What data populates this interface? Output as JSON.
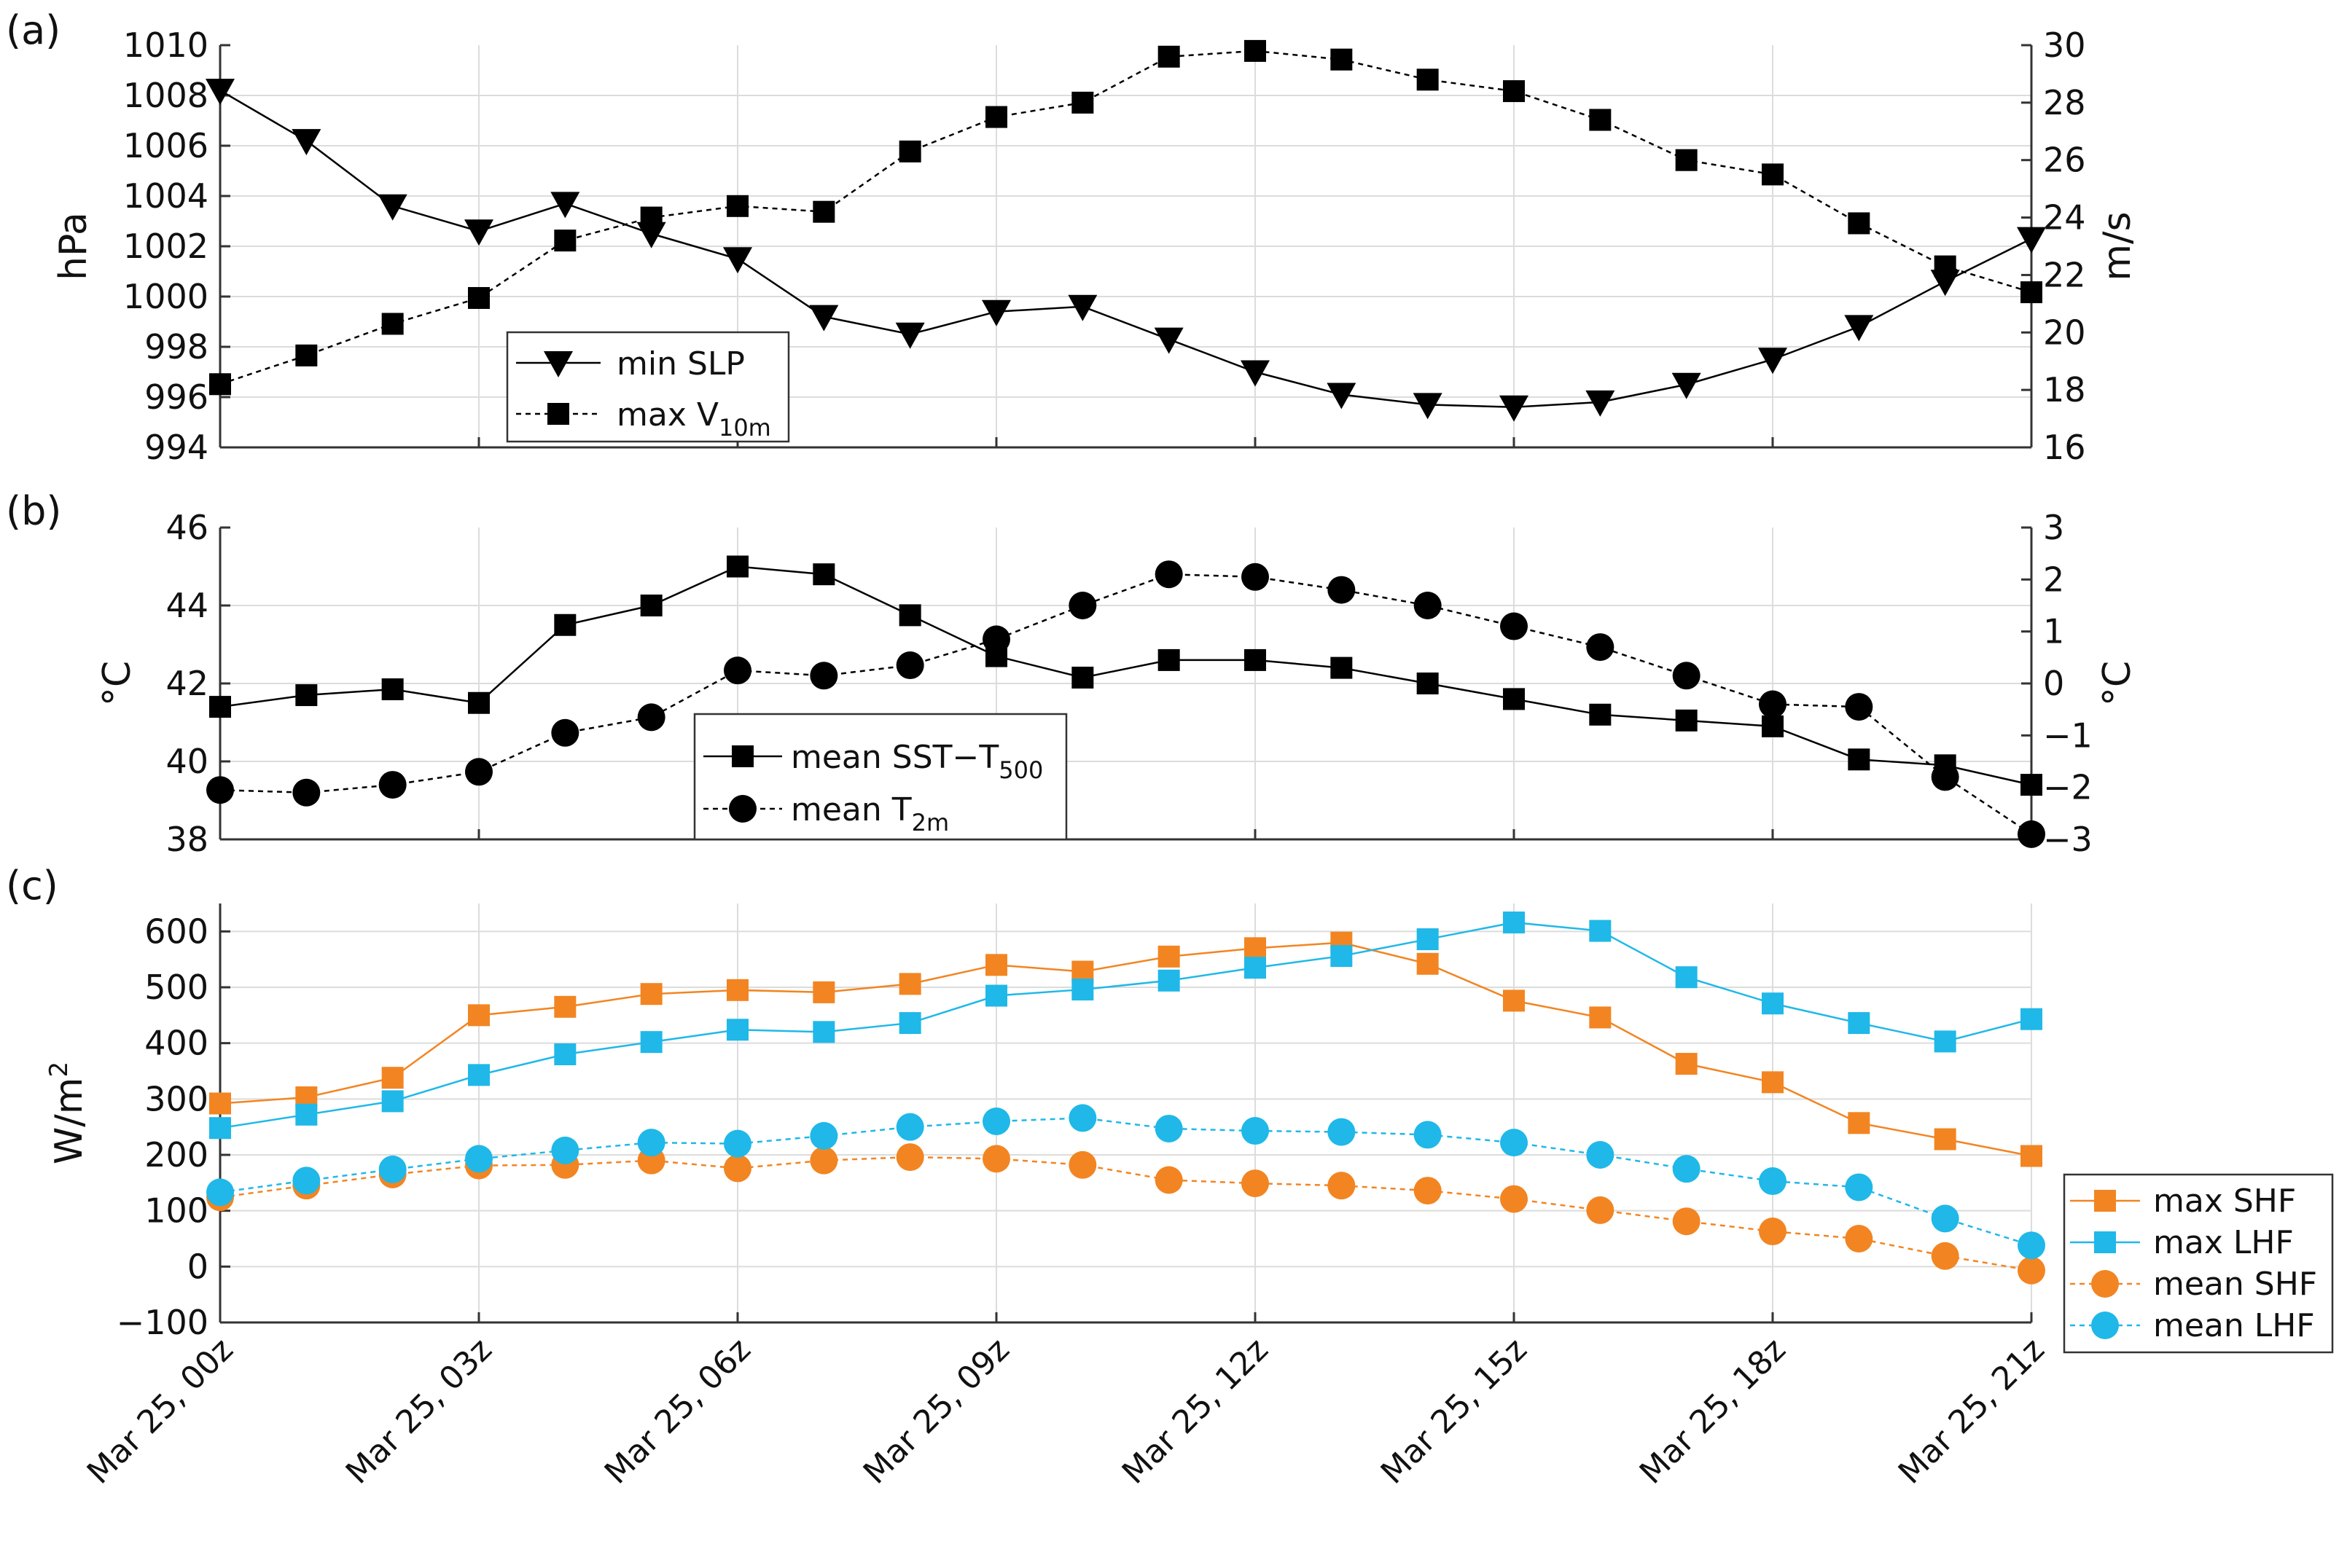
{
  "chart_data": [
    {
      "panel_label": "(a)",
      "type": "line",
      "x": [
        "Mar 25, 00z",
        "Mar 25, 01z",
        "Mar 25, 02z",
        "Mar 25, 03z",
        "Mar 25, 04z",
        "Mar 25, 05z",
        "Mar 25, 06z",
        "Mar 25, 07z",
        "Mar 25, 08z",
        "Mar 25, 09z",
        "Mar 25, 10z",
        "Mar 25, 11z",
        "Mar 25, 12z",
        "Mar 25, 13z",
        "Mar 25, 14z",
        "Mar 25, 15z",
        "Mar 25, 16z",
        "Mar 25, 17z",
        "Mar 25, 18z",
        "Mar 25, 19z",
        "Mar 25, 20z",
        "Mar 25, 21z"
      ],
      "left_axis": {
        "label": "hPa",
        "ylim": [
          994,
          1010
        ],
        "ticks": [
          "994",
          "996",
          "998",
          "1000",
          "1002",
          "1004",
          "1006",
          "1008",
          "1010"
        ]
      },
      "right_axis": {
        "label": "m/s",
        "ylim": [
          16,
          30
        ],
        "ticks": [
          "16",
          "18",
          "20",
          "22",
          "24",
          "26",
          "28",
          "30"
        ]
      },
      "series": [
        {
          "name": "min SLP",
          "axis": "left",
          "marker": "triangle-down",
          "style": "solid",
          "color": "#000000",
          "values": [
            1008.2,
            1006.2,
            1003.6,
            1002.6,
            1003.7,
            1002.5,
            1001.5,
            999.2,
            998.5,
            999.4,
            999.6,
            998.3,
            997.0,
            996.1,
            995.7,
            995.6,
            995.8,
            996.5,
            997.5,
            998.8,
            1000.6,
            1002.3
          ]
        },
        {
          "name": "max V",
          "name_sub": "10m",
          "axis": "right",
          "marker": "square",
          "style": "dashed",
          "color": "#000000",
          "values": [
            18.2,
            19.2,
            20.3,
            21.2,
            23.2,
            24.0,
            24.4,
            24.2,
            26.3,
            27.5,
            28.0,
            29.6,
            29.8,
            29.5,
            28.8,
            28.4,
            27.4,
            26.0,
            25.5,
            23.8,
            22.3,
            21.4
          ]
        }
      ]
    },
    {
      "panel_label": "(b)",
      "type": "line",
      "x": [
        "Mar 25, 00z",
        "Mar 25, 01z",
        "Mar 25, 02z",
        "Mar 25, 03z",
        "Mar 25, 04z",
        "Mar 25, 05z",
        "Mar 25, 06z",
        "Mar 25, 07z",
        "Mar 25, 08z",
        "Mar 25, 09z",
        "Mar 25, 10z",
        "Mar 25, 11z",
        "Mar 25, 12z",
        "Mar 25, 13z",
        "Mar 25, 14z",
        "Mar 25, 15z",
        "Mar 25, 16z",
        "Mar 25, 17z",
        "Mar 25, 18z",
        "Mar 25, 19z",
        "Mar 25, 20z",
        "Mar 25, 21z"
      ],
      "left_axis": {
        "label": "°C",
        "ylim": [
          38,
          46
        ],
        "ticks": [
          "38",
          "40",
          "42",
          "44",
          "46"
        ]
      },
      "right_axis": {
        "label": "°C",
        "ylim": [
          -3,
          3
        ],
        "ticks": [
          "−3",
          "−2",
          "−1",
          "0",
          "1",
          "2",
          "3"
        ]
      },
      "series": [
        {
          "name": "mean SST−T",
          "name_sub": "500",
          "axis": "left",
          "marker": "square",
          "style": "solid",
          "color": "#000000",
          "values": [
            41.4,
            41.7,
            41.85,
            41.5,
            43.5,
            44.0,
            45.0,
            44.8,
            43.75,
            42.7,
            42.15,
            42.6,
            42.6,
            42.4,
            42.0,
            41.6,
            41.2,
            41.05,
            40.9,
            40.05,
            39.9,
            39.4
          ]
        },
        {
          "name": "mean T",
          "name_sub": "2m",
          "axis": "right",
          "marker": "circle",
          "style": "dashed",
          "color": "#000000",
          "values": [
            -2.05,
            -2.1,
            -1.95,
            -1.7,
            -0.95,
            -0.65,
            0.25,
            0.15,
            0.35,
            0.85,
            1.5,
            2.1,
            2.05,
            1.8,
            1.5,
            1.1,
            0.7,
            0.15,
            -0.4,
            -0.45,
            -1.8,
            -2.9
          ]
        }
      ]
    },
    {
      "panel_label": "(c)",
      "type": "line",
      "x": [
        "Mar 25, 00z",
        "Mar 25, 01z",
        "Mar 25, 02z",
        "Mar 25, 03z",
        "Mar 25, 04z",
        "Mar 25, 05z",
        "Mar 25, 06z",
        "Mar 25, 07z",
        "Mar 25, 08z",
        "Mar 25, 09z",
        "Mar 25, 10z",
        "Mar 25, 11z",
        "Mar 25, 12z",
        "Mar 25, 13z",
        "Mar 25, 14z",
        "Mar 25, 15z",
        "Mar 25, 16z",
        "Mar 25, 17z",
        "Mar 25, 18z",
        "Mar 25, 19z",
        "Mar 25, 20z",
        "Mar 25, 21z"
      ],
      "left_axis": {
        "label": "W/m",
        "label_sup": "2",
        "ylim": [
          -100,
          650
        ],
        "ticks": [
          "−100",
          "0",
          "100",
          "200",
          "300",
          "400",
          "500",
          "600"
        ],
        "tick_values": [
          -100,
          0,
          100,
          200,
          300,
          400,
          500,
          600
        ]
      },
      "series": [
        {
          "name": "max SHF",
          "marker": "square",
          "style": "solid",
          "color": "#F28522",
          "values": [
            292,
            303,
            338,
            450,
            465,
            488,
            495,
            491,
            506,
            540,
            528,
            555,
            570,
            580,
            542,
            476,
            446,
            363,
            330,
            257,
            228,
            198
          ]
        },
        {
          "name": "max LHF",
          "marker": "square",
          "style": "solid",
          "color": "#1FB8E8",
          "values": [
            248,
            272,
            296,
            343,
            380,
            402,
            424,
            420,
            436,
            485,
            496,
            512,
            535,
            556,
            586,
            616,
            601,
            518,
            471,
            436,
            403,
            443
          ]
        },
        {
          "name": "mean SHF",
          "marker": "circle",
          "style": "dashed",
          "color": "#F28522",
          "values": [
            124,
            145,
            165,
            181,
            182,
            190,
            176,
            190,
            196,
            193,
            182,
            155,
            149,
            145,
            136,
            121,
            101,
            81,
            63,
            50,
            19,
            -7
          ]
        },
        {
          "name": "mean LHF",
          "marker": "circle",
          "style": "dashed",
          "color": "#1FB8E8",
          "values": [
            133,
            154,
            174,
            193,
            208,
            222,
            220,
            234,
            250,
            260,
            266,
            247,
            243,
            241,
            236,
            222,
            200,
            175,
            153,
            142,
            86,
            38
          ]
        }
      ]
    }
  ],
  "xticks": {
    "labels": [
      "Mar 25, 00z",
      "Mar 25, 03z",
      "Mar 25, 06z",
      "Mar 25, 09z",
      "Mar 25, 12z",
      "Mar 25, 15z",
      "Mar 25, 18z",
      "Mar 25, 21z"
    ],
    "index": [
      0,
      3,
      6,
      9,
      12,
      15,
      18,
      21
    ]
  }
}
